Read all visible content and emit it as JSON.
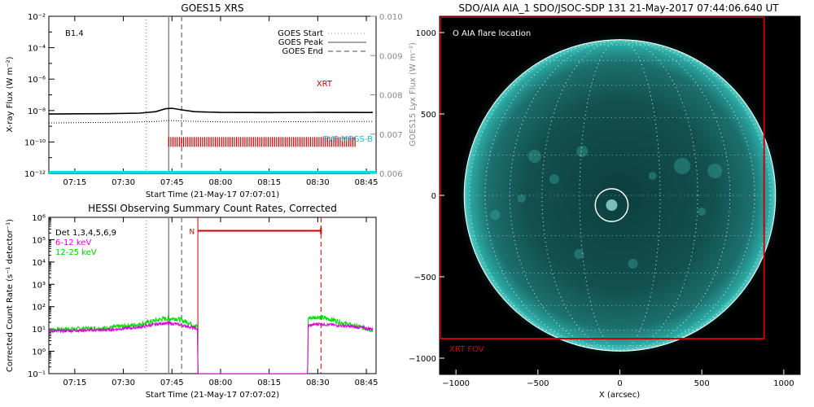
{
  "colors": {
    "axis": "#000000",
    "right_axis": "#888888",
    "xrt": "#cc0000",
    "eve": "#00e0e0",
    "hessi_6_12": "#dd00dd",
    "hessi_12_25": "#00dd00",
    "solar_teal": "#1a8c8c",
    "fov_red": "#cc0000"
  },
  "chart_data": [
    {
      "type": "line",
      "title": "GOES15 XRS",
      "xlabel": "Start Time (21-May-17 07:07:01)",
      "ylabel": "X-ray Flux (W m⁻²)",
      "ylabel_right": "GOES15 Lyx Flux (W m⁻²)",
      "x_range": [
        "07:07",
        "08:48"
      ],
      "x_ticks": [
        "07:15",
        "07:30",
        "07:45",
        "08:00",
        "08:15",
        "08:30",
        "08:45"
      ],
      "y_scale": "log",
      "y_range": [
        1e-12,
        0.01
      ],
      "y_ticks": [
        "10⁻¹²",
        "10⁻¹⁰",
        "10⁻⁸",
        "10⁻⁶",
        "10⁻⁴",
        "10⁻²"
      ],
      "y_right_range": [
        0.006,
        0.01
      ],
      "y_right_ticks": [
        "0.006",
        "0.007",
        "0.008",
        "0.009",
        "0.010"
      ],
      "class_label": "B1.4",
      "legend": [
        "GOES Start",
        "GOES Peak",
        "GOES End"
      ],
      "legend_position": "top-right",
      "annotations": [
        "XRT",
        "EVE MEGS-B"
      ],
      "event_markers": {
        "start": "07:37",
        "peak": "07:44",
        "end": "07:48"
      },
      "series": [
        {
          "name": "",
          "style": "solid",
          "x": [
            "07:07",
            "07:15",
            "07:25",
            "07:35",
            "07:40",
            "07:43",
            "07:45",
            "07:48",
            "07:52",
            "08:00",
            "08:15",
            "08:30",
            "08:47"
          ],
          "values": [
            6e-09,
            6.2e-09,
            6.3e-09,
            6.8e-09,
            8.5e-09,
            1.3e-08,
            1.4e-08,
            1.1e-08,
            8.5e-09,
            7.6e-09,
            7.4e-09,
            7.6e-09,
            7.5e-09
          ]
        },
        {
          "name": "",
          "style": "dotted",
          "x": [
            "07:07",
            "07:15",
            "07:30",
            "07:40",
            "07:44",
            "07:50",
            "08:00",
            "08:15",
            "08:30",
            "08:47"
          ],
          "values": [
            1.6e-09,
            1.7e-09,
            1.8e-09,
            2e-09,
            2.3e-09,
            2.1e-09,
            1.9e-09,
            1.9e-09,
            2e-09,
            2e-09
          ]
        },
        {
          "name": "XRT",
          "style": "ticks",
          "x_start": "07:44",
          "x_end": "08:42",
          "y": 1e-10
        },
        {
          "name": "EVE MEGS-B",
          "style": "solid",
          "x": [
            "07:07",
            "08:48"
          ],
          "values": [
            1e-12,
            1e-12
          ]
        }
      ]
    },
    {
      "type": "line",
      "title": "HESSI Observing Summary Count Rates, Corrected",
      "xlabel": "Start Time (21-May-17 07:07:02)",
      "ylabel": "Corrected Count Rate (s⁻¹ detector⁻¹)",
      "x_range": [
        "07:07",
        "08:48"
      ],
      "x_ticks": [
        "07:15",
        "07:30",
        "07:45",
        "08:00",
        "08:15",
        "08:30",
        "08:45"
      ],
      "y_scale": "log",
      "y_range": [
        0.1,
        1000000.0
      ],
      "y_ticks": [
        "10⁻¹",
        "10⁰",
        "10¹",
        "10²",
        "10³",
        "10⁴",
        "10⁵",
        "10⁶"
      ],
      "legend": [
        "Det 1,3,4,5,6,9",
        "6-12 keV",
        "12-25 keV"
      ],
      "legend_position": "top-left",
      "night_label": "N",
      "night_interval": [
        "07:53",
        "08:31"
      ],
      "night_level": 250000.0,
      "event_markers": {
        "start": "07:37",
        "peak": "07:44",
        "end": "07:48"
      },
      "series": [
        {
          "name": "6-12 keV",
          "x": [
            "07:07",
            "07:15",
            "07:25",
            "07:35",
            "07:42",
            "07:46",
            "07:50",
            "07:52.9",
            "07:53",
            "08:26.9",
            "08:27",
            "08:30",
            "08:35",
            "08:40",
            "08:47"
          ],
          "values": [
            8,
            8.5,
            9,
            12,
            18,
            17,
            13,
            10,
            0.1,
            0.1,
            14,
            17,
            15,
            13,
            10
          ]
        },
        {
          "name": "12-25 keV",
          "x": [
            "07:07",
            "07:15",
            "07:25",
            "07:35",
            "07:42",
            "07:46",
            "07:50",
            "07:52.9",
            "07:53",
            "08:26.9",
            "08:27",
            "08:30",
            "08:35",
            "08:40",
            "08:47"
          ],
          "values": [
            9,
            10,
            11,
            16,
            28,
            30,
            20,
            12,
            0.1,
            0.1,
            30,
            35,
            25,
            15,
            9
          ]
        }
      ]
    },
    {
      "type": "heatmap",
      "title": "SDO/AIA AIA_1 SDO/JSOC-SDP 131 21-May-2017 07:44:06.640 UT",
      "xlabel": "X (arcsec)",
      "ylabel": "",
      "x_range": [
        -1100,
        1100
      ],
      "y_range": [
        -1100,
        1100
      ],
      "x_ticks": [
        "−1000",
        "−500",
        "0",
        "500",
        "1000"
      ],
      "y_ticks": [
        "−1000",
        "−500",
        "0",
        "500",
        "1000"
      ],
      "legend": [
        "O AIA flare location"
      ],
      "solar_radius_arcsec": 950,
      "flare_location": [
        -50,
        -60
      ],
      "flare_circle_radius_arcsec": 100,
      "fov_label": "XRT FOV",
      "fov_box": {
        "x": [
          -1100,
          880
        ],
        "y": [
          -880,
          1100
        ]
      }
    }
  ]
}
